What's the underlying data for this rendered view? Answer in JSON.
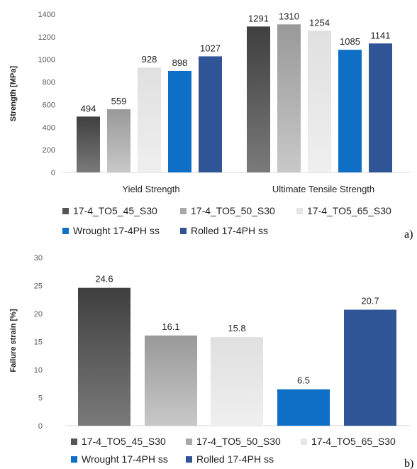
{
  "chart_data": [
    {
      "id": "a",
      "type": "bar",
      "panel_label": "a)",
      "ylabel": "Strength [MPa]",
      "ylim": [
        0,
        1400
      ],
      "yticks": [
        0,
        200,
        400,
        600,
        800,
        1000,
        1200,
        1400
      ],
      "grid": false,
      "legend_position": "bottom",
      "categories": [
        "Yield Strength",
        "Ultimate Tensile Strength"
      ],
      "series": [
        {
          "name": "17-4_TO5_45_S30",
          "values": [
            494,
            1291
          ],
          "color": "#555555",
          "gradient": [
            "#3f3f3f",
            "#7a7a7a"
          ]
        },
        {
          "name": "17-4_TO5_50_S30",
          "values": [
            559,
            1310
          ],
          "color": "#a9a9a9",
          "gradient": [
            "#999999",
            "#c8c8c8"
          ]
        },
        {
          "name": "17-4_TO5_65_S30",
          "values": [
            928,
            1254
          ],
          "color": "#e6e6e6",
          "gradient": [
            "#e0e0e0",
            "#efefef"
          ]
        },
        {
          "name": "Wrought 17-4PH ss",
          "values": [
            898,
            1085
          ],
          "color": "#0f6fc6",
          "gradient": [
            "#0f6fc6",
            "#0f6fc6"
          ]
        },
        {
          "name": "Rolled 17-4PH ss",
          "values": [
            1027,
            1141
          ],
          "color": "#2f5597",
          "gradient": [
            "#2f5597",
            "#2f5597"
          ]
        }
      ]
    },
    {
      "id": "b",
      "type": "bar",
      "panel_label": "b)",
      "ylabel": "Failure strain [%]",
      "ylim": [
        0,
        30
      ],
      "yticks": [
        0,
        5,
        10,
        15,
        20,
        25,
        30
      ],
      "grid": false,
      "legend_position": "bottom",
      "categories": [
        ""
      ],
      "series": [
        {
          "name": "17-4_TO5_45_S30",
          "values": [
            24.6
          ],
          "color": "#555555",
          "gradient": [
            "#3f3f3f",
            "#7a7a7a"
          ]
        },
        {
          "name": "17-4_TO5_50_S30",
          "values": [
            16.1
          ],
          "color": "#a9a9a9",
          "gradient": [
            "#999999",
            "#c8c8c8"
          ]
        },
        {
          "name": "17-4_TO5_65_S30",
          "values": [
            15.8
          ],
          "color": "#e6e6e6",
          "gradient": [
            "#e0e0e0",
            "#efefef"
          ]
        },
        {
          "name": "Wrought 17-4PH ss",
          "values": [
            6.5
          ],
          "color": "#0f6fc6",
          "gradient": [
            "#0f6fc6",
            "#0f6fc6"
          ]
        },
        {
          "name": "Rolled 17-4PH ss",
          "values": [
            20.7
          ],
          "color": "#2f5597",
          "gradient": [
            "#2f5597",
            "#2f5597"
          ]
        }
      ]
    }
  ]
}
